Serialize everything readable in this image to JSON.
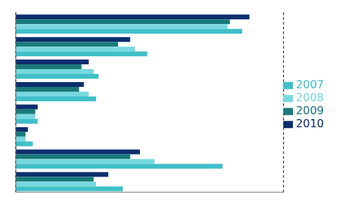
{
  "chart_data": {
    "type": "bar",
    "orientation": "horizontal",
    "categories": [
      null,
      null,
      null,
      null,
      null,
      null,
      null,
      null
    ],
    "series": [
      {
        "name": "2010",
        "color": "#0D2E6E",
        "values": [
          96,
          47,
          30,
          28,
          9,
          5,
          51,
          38
        ]
      },
      {
        "name": "2009",
        "color": "#1A7A7A",
        "values": [
          88,
          42,
          27,
          26,
          8,
          4,
          47,
          32
        ]
      },
      {
        "name": "2008",
        "color": "#78D8E0",
        "values": [
          87,
          49,
          32,
          30,
          8,
          4,
          57,
          33
        ]
      },
      {
        "name": "2007",
        "color": "#40BFC8",
        "values": [
          93,
          54,
          34,
          33,
          9,
          7,
          85,
          44
        ]
      }
    ],
    "xlim": [
      0,
      110
    ],
    "xticks": [
      27.5,
      55,
      82.5
    ],
    "grid": true,
    "legend": "right",
    "tick_labels": false
  }
}
